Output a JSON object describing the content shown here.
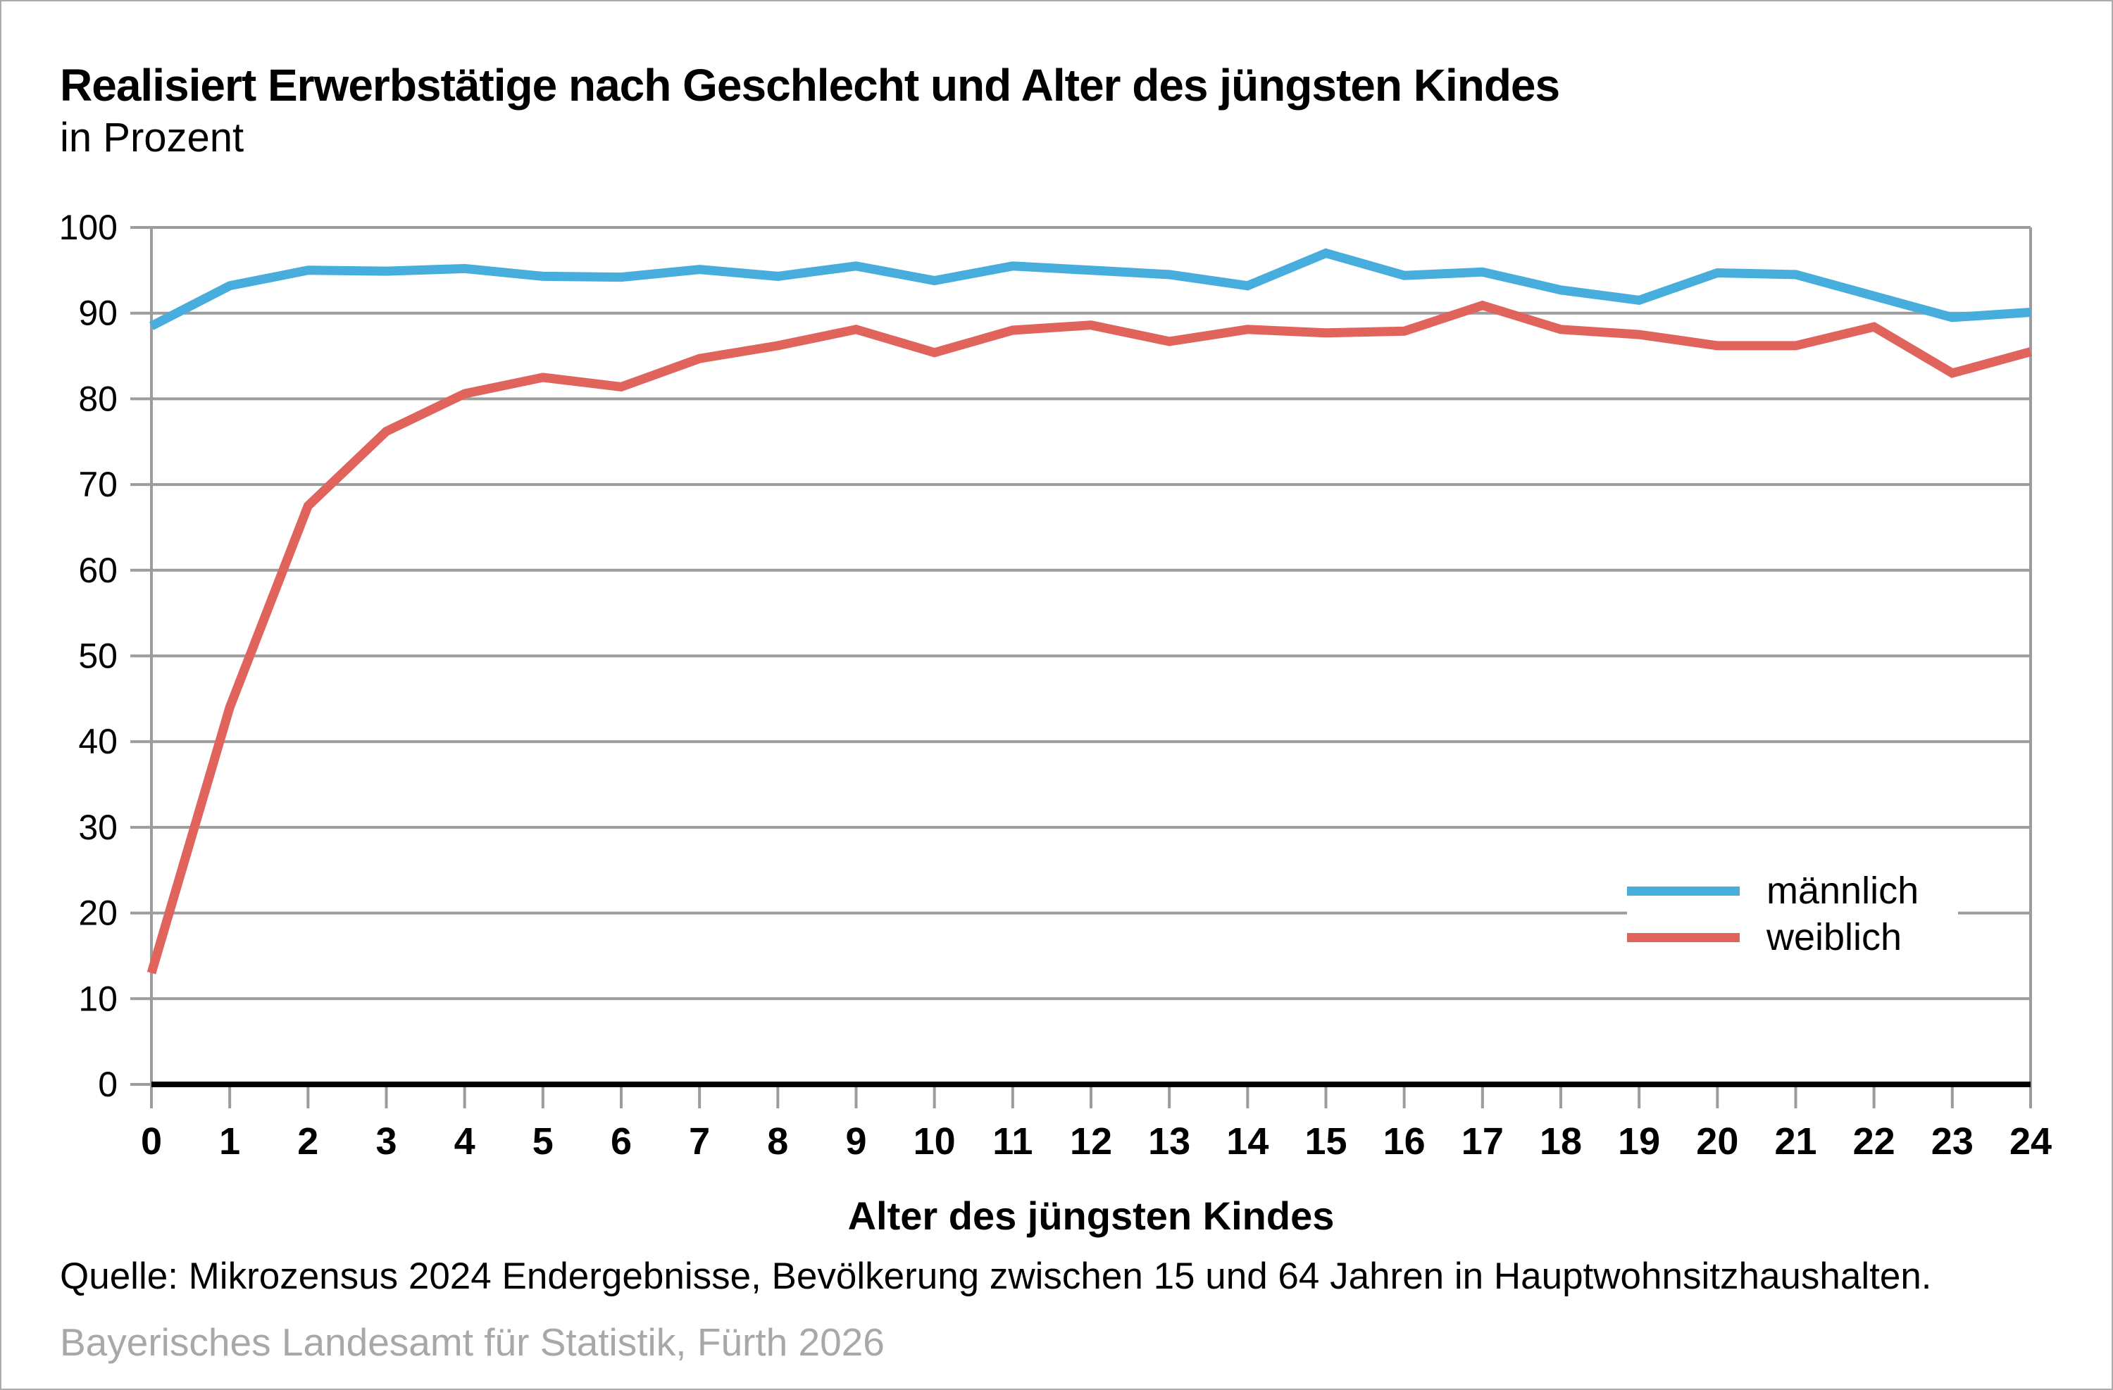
{
  "chart_data": {
    "type": "line",
    "title": "Realisiert Erwerbstätige nach Geschlecht und Alter des jüngsten Kindes",
    "subtitle": "in Prozent",
    "xlabel": "Alter des jüngsten Kindes",
    "ylabel": "",
    "ylim": [
      0,
      100
    ],
    "y_ticks": [
      0,
      10,
      20,
      30,
      40,
      50,
      60,
      70,
      80,
      90,
      100
    ],
    "grid": true,
    "legend_position": "inside-right",
    "x": [
      0,
      1,
      2,
      3,
      4,
      5,
      6,
      7,
      8,
      9,
      10,
      11,
      12,
      13,
      14,
      15,
      16,
      17,
      18,
      19,
      20,
      21,
      22,
      23,
      24
    ],
    "series": [
      {
        "name": "männlich",
        "color": "#47addc",
        "values": [
          88.5,
          93.2,
          95.0,
          94.9,
          95.2,
          94.3,
          94.2,
          95.1,
          94.3,
          95.5,
          93.8,
          95.5,
          95.0,
          94.5,
          93.2,
          97.0,
          94.4,
          94.8,
          92.7,
          91.5,
          94.7,
          94.5,
          92.0,
          89.5,
          90.1
        ]
      },
      {
        "name": "weiblich",
        "color": "#e0635c",
        "values": [
          13.0,
          44.0,
          67.5,
          76.2,
          80.6,
          82.5,
          81.4,
          84.7,
          86.2,
          88.1,
          85.4,
          88.0,
          88.6,
          86.7,
          88.1,
          87.7,
          87.9,
          90.9,
          88.1,
          87.5,
          86.2,
          86.2,
          88.4,
          83.0,
          85.5
        ]
      }
    ]
  },
  "footer": {
    "source": "Quelle: Mikrozensus 2024 Endergebnisse, Bevölkerung zwischen 15 und 64 Jahren in Hauptwohnsitzhaushalten.",
    "agency": "Bayerisches Landesamt für Statistik, Fürth 2026"
  },
  "colors": {
    "grid": "#9c9c9c",
    "axis": "#000000"
  }
}
